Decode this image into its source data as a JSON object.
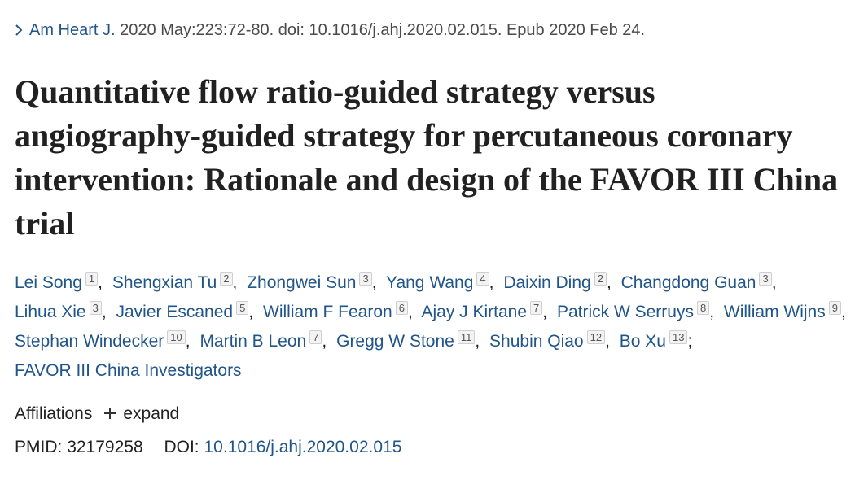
{
  "citation": {
    "journal": "Am Heart J.",
    "details": "2020 May:223:72-80. doi: 10.1016/j.ahj.2020.02.015. Epub 2020 Feb 24."
  },
  "title": "Quantitative flow ratio-guided strategy versus angiography-guided strategy for percutaneous coronary intervention: Rationale and design of the FAVOR III China trial",
  "authors": [
    {
      "name": "Lei Song",
      "affiliation": "1",
      "separator": ","
    },
    {
      "name": "Shengxian Tu",
      "affiliation": "2",
      "separator": ","
    },
    {
      "name": "Zhongwei Sun",
      "affiliation": "3",
      "separator": ","
    },
    {
      "name": "Yang Wang",
      "affiliation": "4",
      "separator": ","
    },
    {
      "name": "Daixin Ding",
      "affiliation": "2",
      "separator": ","
    },
    {
      "name": "Changdong Guan",
      "affiliation": "3",
      "separator": ","
    },
    {
      "name": "Lihua Xie",
      "affiliation": "3",
      "separator": ","
    },
    {
      "name": "Javier Escaned",
      "affiliation": "5",
      "separator": ","
    },
    {
      "name": "William F Fearon",
      "affiliation": "6",
      "separator": ","
    },
    {
      "name": "Ajay J Kirtane",
      "affiliation": "7",
      "separator": ","
    },
    {
      "name": "Patrick W Serruys",
      "affiliation": "8",
      "separator": ","
    },
    {
      "name": "William Wijns",
      "affiliation": "9",
      "separator": ","
    },
    {
      "name": "Stephan Windecker",
      "affiliation": "10",
      "separator": ","
    },
    {
      "name": "Martin B Leon",
      "affiliation": "7",
      "separator": ","
    },
    {
      "name": "Gregg W Stone",
      "affiliation": "11",
      "separator": ","
    },
    {
      "name": "Shubin Qiao",
      "affiliation": "12",
      "separator": ","
    },
    {
      "name": "Bo Xu",
      "affiliation": "13",
      "separator": ";"
    }
  ],
  "group_author": "FAVOR III China Investigators",
  "affiliations": {
    "label": "Affiliations",
    "toggle": "expand"
  },
  "identifiers": {
    "pmid_label": "PMID:",
    "pmid": "32179258",
    "doi_label": "DOI:",
    "doi": "10.1016/j.ahj.2020.02.015"
  }
}
